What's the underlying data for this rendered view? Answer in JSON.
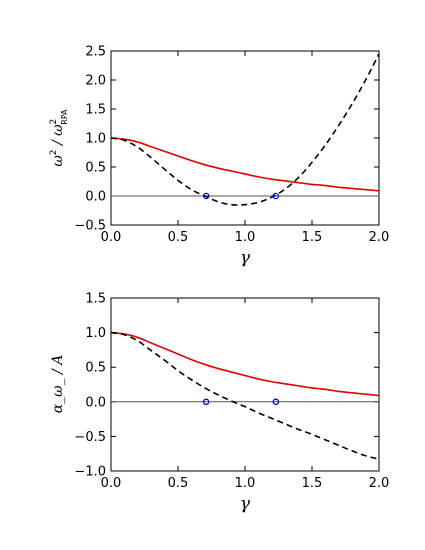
{
  "chart_data": [
    {
      "type": "line",
      "xlabel": "γ",
      "ylabel": {
        "base": "ω",
        "sup1": "2",
        "mid": " / ω",
        "sup2": "2",
        "sub2": "RPA"
      },
      "xlim": [
        0.0,
        2.0
      ],
      "ylim": [
        -0.5,
        2.5
      ],
      "xticks": [
        0.0,
        0.5,
        1.0,
        1.5,
        2.0
      ],
      "xtick_labels": [
        "0.0",
        "0.5",
        "1.0",
        "1.5",
        "2.0"
      ],
      "yticks": [
        -0.5,
        0.0,
        0.5,
        1.0,
        1.5,
        2.0,
        2.5
      ],
      "ytick_labels": [
        "−0.5",
        "0.0",
        "0.5",
        "1.0",
        "1.5",
        "2.0",
        "2.5"
      ],
      "hline": 0.0,
      "series": [
        {
          "style": "solid",
          "color": "#e00000",
          "x": [
            0.0,
            0.1,
            0.2,
            0.3,
            0.4,
            0.5,
            0.6,
            0.7,
            0.8,
            0.9,
            1.0,
            1.1,
            1.2,
            1.3,
            1.4,
            1.5,
            1.6,
            1.7,
            1.8,
            1.9,
            2.0
          ],
          "y": [
            1.0,
            0.98,
            0.93,
            0.85,
            0.77,
            0.69,
            0.61,
            0.54,
            0.48,
            0.43,
            0.38,
            0.33,
            0.29,
            0.26,
            0.23,
            0.2,
            0.18,
            0.15,
            0.13,
            0.11,
            0.09
          ]
        },
        {
          "style": "dashed",
          "color": "#000000",
          "x": [
            0.0,
            0.1,
            0.2,
            0.3,
            0.4,
            0.5,
            0.6,
            0.7,
            0.8,
            0.9,
            1.0,
            1.1,
            1.2,
            1.3,
            1.4,
            1.5,
            1.6,
            1.7,
            1.8,
            1.9,
            2.0
          ],
          "y": [
            1.0,
            0.96,
            0.84,
            0.66,
            0.46,
            0.27,
            0.11,
            0.0,
            -0.1,
            -0.15,
            -0.15,
            -0.11,
            -0.02,
            0.12,
            0.32,
            0.58,
            0.88,
            1.22,
            1.59,
            2.0,
            2.45
          ]
        }
      ],
      "points": {
        "color": "#0000ee",
        "x": [
          0.71,
          1.23
        ],
        "y": [
          0.0,
          0.0
        ]
      }
    },
    {
      "type": "line",
      "xlabel": "γ",
      "ylabel": {
        "text": "α_ω_ / A"
      },
      "xlim": [
        0.0,
        2.0
      ],
      "ylim": [
        -1.0,
        1.5
      ],
      "xticks": [
        0.0,
        0.5,
        1.0,
        1.5,
        2.0
      ],
      "xtick_labels": [
        "0.0",
        "0.5",
        "1.0",
        "1.5",
        "2.0"
      ],
      "yticks": [
        -1.0,
        -0.5,
        0.0,
        0.5,
        1.0,
        1.5
      ],
      "ytick_labels": [
        "−1.0",
        "−0.5",
        "0.0",
        "0.5",
        "1.0",
        "1.5"
      ],
      "hline": 0.0,
      "series": [
        {
          "style": "solid",
          "color": "#e00000",
          "x": [
            0.0,
            0.1,
            0.2,
            0.3,
            0.4,
            0.5,
            0.6,
            0.7,
            0.8,
            0.9,
            1.0,
            1.1,
            1.2,
            1.3,
            1.4,
            1.5,
            1.6,
            1.7,
            1.8,
            1.9,
            2.0
          ],
          "y": [
            1.0,
            0.98,
            0.93,
            0.85,
            0.77,
            0.69,
            0.61,
            0.54,
            0.48,
            0.43,
            0.38,
            0.33,
            0.29,
            0.26,
            0.23,
            0.2,
            0.18,
            0.15,
            0.13,
            0.11,
            0.09
          ]
        },
        {
          "style": "dashed",
          "color": "#000000",
          "x": [
            0.0,
            0.1,
            0.2,
            0.3,
            0.4,
            0.5,
            0.6,
            0.7,
            0.8,
            0.9,
            1.0,
            1.1,
            1.2,
            1.3,
            1.4,
            1.5,
            1.6,
            1.7,
            1.8,
            1.9,
            2.0
          ],
          "y": [
            1.0,
            0.97,
            0.88,
            0.74,
            0.6,
            0.45,
            0.32,
            0.2,
            0.1,
            0.01,
            -0.07,
            -0.16,
            -0.24,
            -0.32,
            -0.4,
            -0.47,
            -0.55,
            -0.63,
            -0.71,
            -0.78,
            -0.83
          ]
        }
      ],
      "points": {
        "color": "#0000ee",
        "x": [
          0.71,
          1.23
        ],
        "y": [
          0.0,
          0.0
        ]
      }
    }
  ]
}
